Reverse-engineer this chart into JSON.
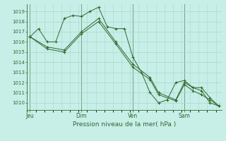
{
  "bg_color": "#c8eee8",
  "grid_color": "#a8d8cc",
  "line_color": "#2d6a2d",
  "xlabel": "Pression niveau de la mer( hPa )",
  "ylim": [
    1009.3,
    1019.7
  ],
  "yticks": [
    1010,
    1011,
    1012,
    1013,
    1014,
    1015,
    1016,
    1017,
    1018,
    1019
  ],
  "xtick_labels": [
    "Jeu",
    "Dim",
    "Ven",
    "Sam"
  ],
  "xtick_positions": [
    2,
    38,
    74,
    110
  ],
  "vline_positions": [
    2,
    38,
    74,
    110
  ],
  "xlim": [
    0,
    136
  ],
  "series1": [
    [
      2,
      1016.5
    ],
    [
      8,
      1017.3
    ],
    [
      14,
      1016.0
    ],
    [
      20,
      1016.0
    ],
    [
      26,
      1018.3
    ],
    [
      32,
      1018.6
    ],
    [
      38,
      1018.5
    ],
    [
      44,
      1019.0
    ],
    [
      50,
      1019.4
    ],
    [
      56,
      1017.5
    ],
    [
      62,
      1017.3
    ],
    [
      68,
      1017.3
    ],
    [
      74,
      1014.5
    ],
    [
      80,
      1013.0
    ],
    [
      86,
      1011.0
    ],
    [
      92,
      1010.0
    ],
    [
      98,
      1010.3
    ],
    [
      104,
      1012.0
    ],
    [
      110,
      1012.2
    ],
    [
      116,
      1011.5
    ],
    [
      122,
      1011.5
    ],
    [
      128,
      1010.5
    ],
    [
      134,
      1009.7
    ]
  ],
  "series2": [
    [
      2,
      1016.5
    ],
    [
      14,
      1015.5
    ],
    [
      26,
      1015.2
    ],
    [
      38,
      1017.0
    ],
    [
      50,
      1018.3
    ],
    [
      62,
      1016.0
    ],
    [
      74,
      1013.8
    ],
    [
      86,
      1012.5
    ],
    [
      92,
      1011.0
    ],
    [
      104,
      1010.3
    ],
    [
      110,
      1012.0
    ],
    [
      116,
      1011.5
    ],
    [
      122,
      1011.2
    ],
    [
      128,
      1010.0
    ],
    [
      134,
      1009.7
    ]
  ],
  "series3": [
    [
      2,
      1016.5
    ],
    [
      14,
      1015.3
    ],
    [
      26,
      1015.0
    ],
    [
      38,
      1016.8
    ],
    [
      50,
      1018.0
    ],
    [
      62,
      1015.8
    ],
    [
      74,
      1013.5
    ],
    [
      86,
      1012.3
    ],
    [
      92,
      1010.8
    ],
    [
      104,
      1010.2
    ],
    [
      110,
      1011.8
    ],
    [
      116,
      1011.2
    ],
    [
      122,
      1010.8
    ],
    [
      128,
      1010.3
    ],
    [
      134,
      1009.7
    ]
  ]
}
